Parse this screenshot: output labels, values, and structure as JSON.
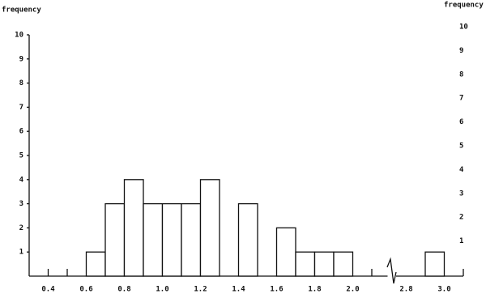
{
  "chart_data": {
    "type": "histogram",
    "ylabel": "frequency",
    "y2label": "frequency",
    "ylim": [
      0,
      10
    ],
    "yticks": [
      1,
      2,
      3,
      4,
      5,
      6,
      7,
      8,
      9,
      10
    ],
    "y2lim": [
      0,
      10
    ],
    "y2ticks": [
      1,
      2,
      3,
      4,
      5,
      6,
      7,
      8,
      9,
      10
    ],
    "color": "#ffffff",
    "edgecolor": "#111111",
    "x_segments": [
      {
        "xlim": [
          0.3,
          2.2
        ],
        "xticks": [
          0.4,
          0.6,
          0.8,
          {
            "value": 1,
            "label": "1.0"
          },
          1.2,
          1.4,
          1.6,
          1.8,
          {
            "value": 2,
            "label": "2.0"
          }
        ],
        "minor_xticks": [
          0.4,
          0.5,
          2.1
        ],
        "bins": [
          0.6,
          0.7,
          0.8,
          0.9,
          1.0,
          1.1,
          1.2,
          1.3,
          1.4,
          1.5,
          1.6,
          1.7,
          1.8,
          1.9,
          2.0
        ],
        "counts": [
          1,
          3,
          4,
          3,
          3,
          3,
          4,
          0,
          3,
          0,
          2,
          1,
          1,
          1
        ]
      },
      {
        "xlim": [
          2.7,
          3.1
        ],
        "xticks": [
          2.8,
          {
            "value": 3,
            "label": "3.0"
          }
        ],
        "minor_xticks": [
          3.1
        ],
        "bins": [
          2.9,
          3.0
        ],
        "counts": [
          1
        ]
      }
    ]
  }
}
